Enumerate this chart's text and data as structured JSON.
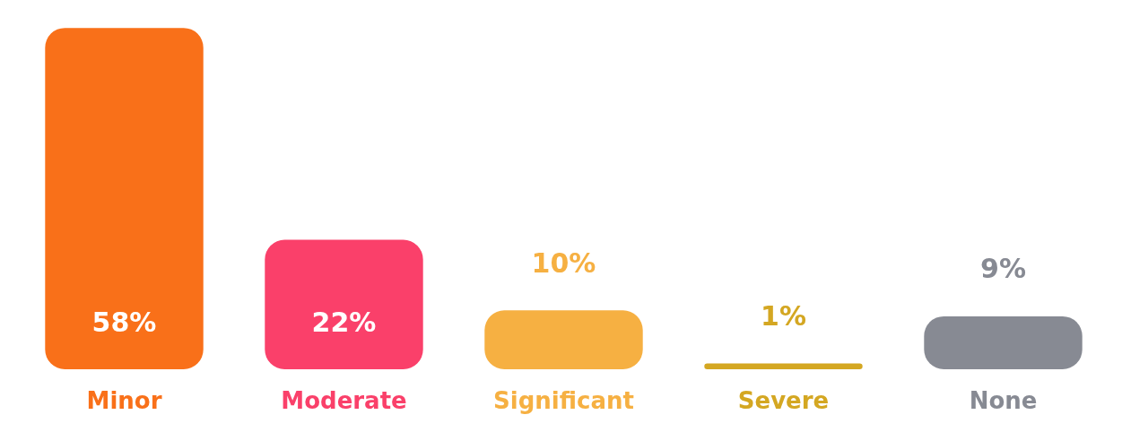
{
  "chart_data": {
    "type": "bar",
    "categories": [
      "Minor",
      "Moderate",
      "Significant",
      "Severe",
      "None"
    ],
    "values": [
      58,
      22,
      10,
      1,
      9
    ],
    "colors": [
      "#f97019",
      "#fa406a",
      "#f6b042",
      "#d4a722",
      "#878a93"
    ],
    "value_labels": [
      "58%",
      "22%",
      "10%",
      "1%",
      "9%"
    ]
  }
}
